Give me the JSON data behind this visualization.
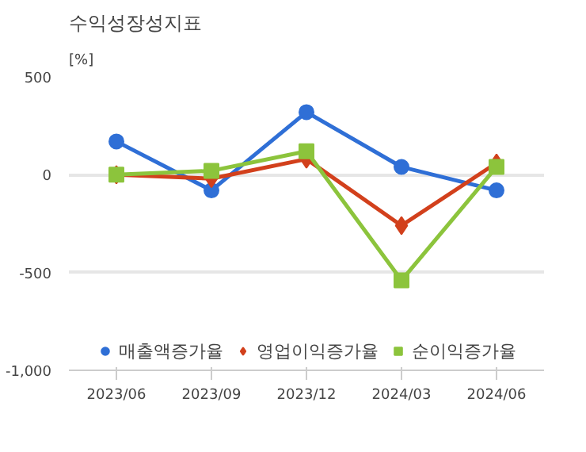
{
  "chart_data": {
    "type": "line",
    "title": "수익성장성지표",
    "ylabel": "[%]",
    "categories": [
      "2023/06",
      "2023/09",
      "2023/12",
      "2024/03",
      "2024/06"
    ],
    "series": [
      {
        "name": "매출액증가율",
        "color": "#2f6fd6",
        "marker": "circle",
        "values": [
          170,
          -80,
          320,
          40,
          -80
        ]
      },
      {
        "name": "영업이익증가율",
        "color": "#d2401c",
        "marker": "diamond",
        "values": [
          0,
          -20,
          80,
          -260,
          60
        ]
      },
      {
        "name": "순이익증가율",
        "color": "#8cc43c",
        "marker": "square",
        "values": [
          0,
          20,
          120,
          -540,
          40
        ]
      }
    ],
    "ylim": [
      -1000,
      500
    ],
    "yticks": [
      {
        "value": 500,
        "label": "500"
      },
      {
        "value": 0,
        "label": "0"
      },
      {
        "value": -500,
        "label": "-500"
      },
      {
        "value": -1000,
        "label": "-1,000"
      }
    ],
    "grid": "y",
    "legend": "bottom",
    "line_style": "solid"
  }
}
